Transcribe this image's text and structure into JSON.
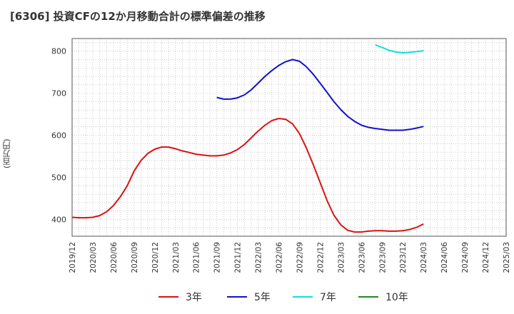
{
  "title": "[6306]  投資CFの12か月移動合計の標準偏差の推移",
  "ylabel": "(百万円)",
  "chart_data": {
    "type": "line",
    "title": "[6306]  投資CFの12か月移動合計の標準偏差の推移",
    "xlabel": "",
    "ylabel": "(百万円)",
    "ylim": [
      360,
      830
    ],
    "yticks": [
      400,
      500,
      600,
      700,
      800
    ],
    "x_range": [
      "2019-12",
      "2025-03"
    ],
    "xticks": [
      "2019/12",
      "2020/03",
      "2020/06",
      "2020/09",
      "2020/12",
      "2021/03",
      "2021/06",
      "2021/09",
      "2021/12",
      "2022/03",
      "2022/06",
      "2022/09",
      "2022/12",
      "2023/03",
      "2023/06",
      "2023/09",
      "2023/12",
      "2024/03",
      "2024/06",
      "2024/09",
      "2024/12",
      "2025/03"
    ],
    "grid": true,
    "legend_position": "bottom",
    "series": [
      {
        "name": "3年",
        "color": "#dd1111",
        "x": [
          "2019-12",
          "2020-01",
          "2020-02",
          "2020-03",
          "2020-04",
          "2020-05",
          "2020-06",
          "2020-07",
          "2020-08",
          "2020-09",
          "2020-10",
          "2020-11",
          "2020-12",
          "2021-01",
          "2021-02",
          "2021-03",
          "2021-04",
          "2021-05",
          "2021-06",
          "2021-07",
          "2021-08",
          "2021-09",
          "2021-10",
          "2021-11",
          "2021-12",
          "2022-01",
          "2022-02",
          "2022-03",
          "2022-04",
          "2022-05",
          "2022-06",
          "2022-07",
          "2022-08",
          "2022-09",
          "2022-10",
          "2022-11",
          "2022-12",
          "2023-01",
          "2023-02",
          "2023-03",
          "2023-04",
          "2023-05",
          "2023-06",
          "2023-07",
          "2023-08",
          "2023-09",
          "2023-10",
          "2023-11",
          "2023-12",
          "2024-01",
          "2024-02",
          "2024-03"
        ],
        "values": [
          405,
          404,
          404,
          405,
          409,
          418,
          433,
          454,
          480,
          515,
          540,
          557,
          567,
          572,
          572,
          568,
          563,
          559,
          555,
          553,
          551,
          551,
          553,
          558,
          566,
          578,
          594,
          610,
          624,
          635,
          640,
          638,
          627,
          604,
          570,
          530,
          488,
          445,
          410,
          387,
          374,
          370,
          370,
          372,
          373,
          373,
          372,
          372,
          373,
          376,
          381,
          389
        ]
      },
      {
        "name": "5年",
        "color": "#1111cc",
        "x": [
          "2021-09",
          "2021-10",
          "2021-11",
          "2021-12",
          "2022-01",
          "2022-02",
          "2022-03",
          "2022-04",
          "2022-05",
          "2022-06",
          "2022-07",
          "2022-08",
          "2022-09",
          "2022-10",
          "2022-11",
          "2022-12",
          "2023-01",
          "2023-02",
          "2023-03",
          "2023-04",
          "2023-05",
          "2023-06",
          "2023-07",
          "2023-08",
          "2023-09",
          "2023-10",
          "2023-11",
          "2023-12",
          "2024-01",
          "2024-02",
          "2024-03"
        ],
        "values": [
          690,
          686,
          686,
          689,
          696,
          708,
          724,
          740,
          754,
          766,
          775,
          780,
          776,
          763,
          745,
          724,
          702,
          680,
          661,
          645,
          633,
          624,
          619,
          616,
          614,
          612,
          612,
          612,
          614,
          617,
          621
        ]
      },
      {
        "name": "7年",
        "color": "#11dddd",
        "x": [
          "2023-08",
          "2023-09",
          "2023-10",
          "2023-11",
          "2023-12",
          "2024-01",
          "2024-02",
          "2024-03"
        ],
        "values": [
          815,
          809,
          802,
          798,
          796,
          797,
          799,
          801
        ]
      },
      {
        "name": "10年",
        "color": "#228822",
        "x": [],
        "values": []
      }
    ]
  }
}
